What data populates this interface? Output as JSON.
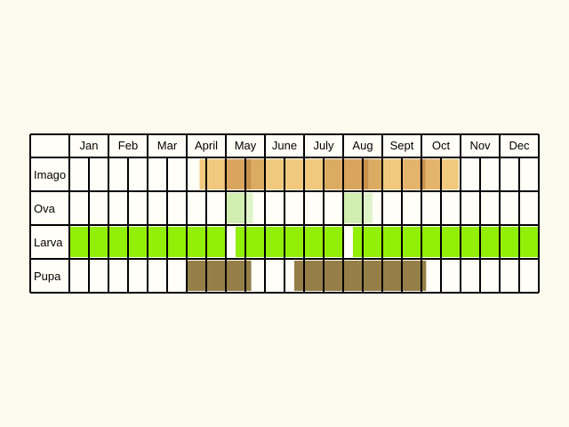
{
  "months": [
    "Jan",
    "Feb",
    "Mar",
    "April",
    "May",
    "June",
    "July",
    "Aug",
    "Sept",
    "Oct",
    "Nov",
    "Dec"
  ],
  "stages": [
    {
      "label": "Imago",
      "segments": [
        {
          "from": 3.33,
          "to": 3.95,
          "color": "#f1c97e"
        },
        {
          "from": 3.95,
          "to": 4.45,
          "color": "#d9a55e"
        },
        {
          "from": 4.45,
          "to": 4.65,
          "color": "#c7914b"
        },
        {
          "from": 4.65,
          "to": 5.0,
          "color": "#dcab62"
        },
        {
          "from": 5.0,
          "to": 5.5,
          "color": "#f1c97e"
        },
        {
          "from": 5.5,
          "to": 6.5,
          "color": "#f1c97e"
        },
        {
          "from": 6.5,
          "to": 6.95,
          "color": "#dcab62"
        },
        {
          "from": 6.95,
          "to": 7.45,
          "color": "#d9a55e"
        },
        {
          "from": 7.45,
          "to": 7.65,
          "color": "#c7914b"
        },
        {
          "from": 7.65,
          "to": 8.0,
          "color": "#dcab62"
        },
        {
          "from": 8.0,
          "to": 8.5,
          "color": "#f1c97e"
        },
        {
          "from": 8.5,
          "to": 8.95,
          "color": "#e4b46c"
        },
        {
          "from": 8.95,
          "to": 9.1,
          "color": "#c7914b"
        },
        {
          "from": 9.1,
          "to": 9.5,
          "color": "#e4b46c"
        },
        {
          "from": 9.5,
          "to": 9.95,
          "color": "#f1c97e"
        }
      ]
    },
    {
      "label": "Ova",
      "segments": [
        {
          "from": 4.0,
          "to": 4.5,
          "color": "#cfeeb0"
        },
        {
          "from": 4.5,
          "to": 4.7,
          "color": "#dff5c9"
        },
        {
          "from": 7.0,
          "to": 7.5,
          "color": "#cfeeb0"
        },
        {
          "from": 7.5,
          "to": 7.75,
          "color": "#dff5c9"
        }
      ]
    },
    {
      "label": "Larva",
      "segments": [
        {
          "from": 0.0,
          "to": 4.0,
          "color": "#92ef08"
        },
        {
          "from": 4.25,
          "to": 7.0,
          "color": "#92ef08"
        },
        {
          "from": 7.25,
          "to": 12.0,
          "color": "#92ef08"
        }
      ]
    },
    {
      "label": "Pupa",
      "segments": [
        {
          "from": 3.0,
          "to": 4.65,
          "color": "#957e48"
        },
        {
          "from": 5.75,
          "to": 9.12,
          "color": "#957e48"
        }
      ]
    }
  ],
  "colors": {
    "background": "#fdfbee",
    "cell": "#fffef7",
    "line": "#000000"
  }
}
